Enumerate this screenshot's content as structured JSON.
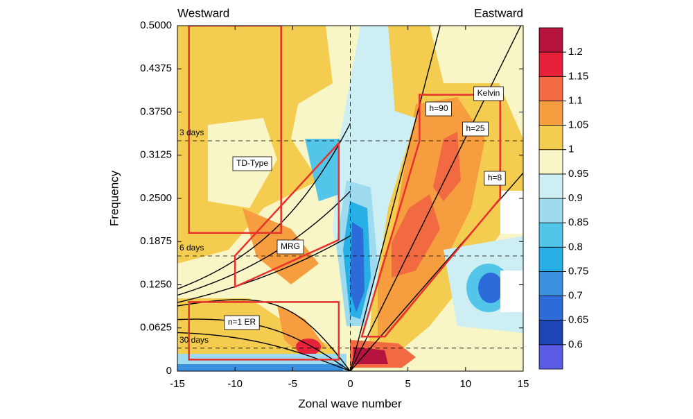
{
  "chart_data": {
    "type": "contour",
    "top_left_label": "Westward",
    "top_right_label": "Eastward",
    "xlabel": "Zonal wave number",
    "ylabel": "Frequency",
    "xlim": [
      -15,
      15
    ],
    "xticks": [
      -15,
      -10,
      -5,
      0,
      5,
      10,
      15
    ],
    "ylim": [
      0,
      0.5
    ],
    "yticks": [
      0,
      0.0625,
      {
        "value": 0.125,
        "label": "0.1250"
      },
      0.1875,
      {
        "value": 0.25,
        "label": "0.2500"
      },
      0.3125,
      {
        "value": 0.375,
        "label": "0.3750"
      },
      0.4375,
      {
        "value": 0.5,
        "label": "0.5000"
      }
    ],
    "period_lines": [
      {
        "label": "3 days",
        "value": 0.3333
      },
      {
        "label": "6 days",
        "value": 0.1667
      },
      {
        "label": "30 days",
        "value": 0.0333
      }
    ],
    "equivalent_depths": [
      {
        "value": 8,
        "label": "h=8"
      },
      {
        "value": 25,
        "label": "h=25"
      },
      {
        "value": 90,
        "label": "h=90"
      }
    ],
    "regions": [
      {
        "label": "TD-Type",
        "points": [
          [
            -14,
            0.2
          ],
          [
            -14,
            0.5
          ],
          [
            -6,
            0.5
          ],
          [
            -6,
            0.2
          ]
        ]
      },
      {
        "label": "MRG",
        "points": [
          [
            -10,
            0.122
          ],
          [
            -10,
            0.167
          ],
          [
            -1,
            0.33
          ],
          [
            -1,
            0.19
          ]
        ]
      },
      {
        "label": "n=1 ER",
        "points": [
          [
            -14,
            0.0167
          ],
          [
            -14,
            0.1
          ],
          [
            -1,
            0.1
          ],
          [
            -1,
            0.0167
          ]
        ]
      },
      {
        "label": "Kelvin",
        "points": [
          [
            1,
            0.05
          ],
          [
            6,
            0.333
          ],
          [
            6,
            0.4
          ],
          [
            13,
            0.4
          ],
          [
            13,
            0.25
          ],
          [
            3,
            0.05
          ]
        ]
      }
    ],
    "region_color": "#e8312d",
    "curve_color": "#000000",
    "colorbar": {
      "levels": [
        0.6,
        0.65,
        0.7,
        0.75,
        0.8,
        0.85,
        0.9,
        0.95,
        1,
        1.05,
        1.1,
        1.15,
        1.2
      ],
      "colors": [
        "#5b5ce6",
        "#1f45b5",
        "#2c6bd8",
        "#3a91e0",
        "#28b0e6",
        "#52c5e8",
        "#9edbef",
        "#cdeef2",
        "#f8f5c6",
        "#f4cc4f",
        "#f69d3f",
        "#f26a42",
        "#e8213b",
        "#b5123e"
      ]
    }
  }
}
